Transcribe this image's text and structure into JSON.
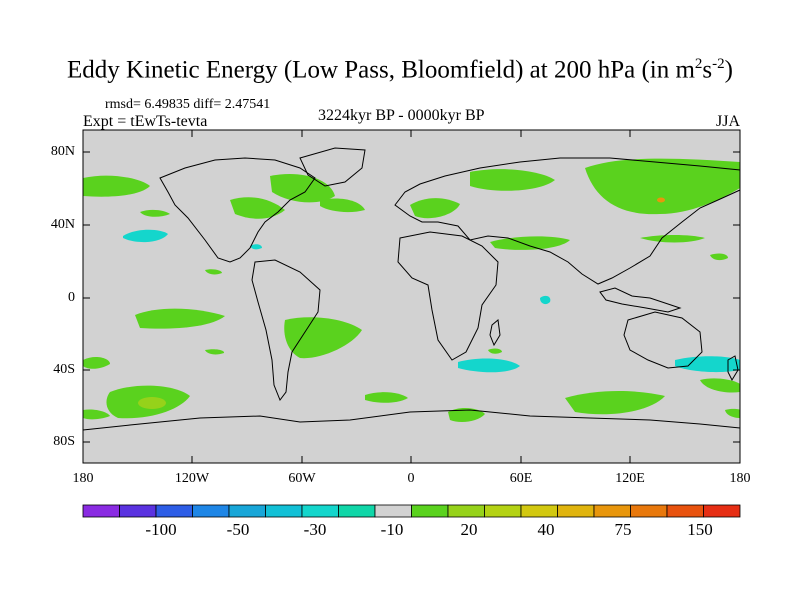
{
  "title": {
    "main": "Eddy Kinetic Energy (Low Pass, Bloomfield) at 200 hPa (in m",
    "sup1": "2",
    "mid": "s",
    "sup2": "-2",
    "end": ")"
  },
  "stats": "rmsd= 6.49835 diff= 2.47541",
  "experiment": "Expt = tEwTs-tevta",
  "period": "3224kyr BP - 0000kyr BP",
  "season": "JJA",
  "lat_labels": [
    "80N",
    "40N",
    "0",
    "40S",
    "80S"
  ],
  "lon_labels": [
    "180",
    "120W",
    "60W",
    "0",
    "60E",
    "120E",
    "180"
  ],
  "colorbar": {
    "colors": [
      "#8a2be2",
      "#5a32e0",
      "#2d5de6",
      "#1e86e6",
      "#18a6d8",
      "#12c0d6",
      "#14d6cc",
      "#10d6a8",
      "#d2d2d2",
      "#5ad21e",
      "#96d21a",
      "#b4d214",
      "#d2c810",
      "#e0b40e",
      "#e8960c",
      "#e8780c",
      "#e8520e",
      "#e62e14"
    ],
    "labels": [
      "-100",
      "-50",
      "-30",
      "-10",
      "20",
      "40",
      "75",
      "150"
    ]
  },
  "colors": {
    "land_bg": "#d2d2d2",
    "positive": "#5ad21e",
    "negative": "#14d6cc",
    "light": "#96d21a",
    "strong": "#e8960c"
  }
}
